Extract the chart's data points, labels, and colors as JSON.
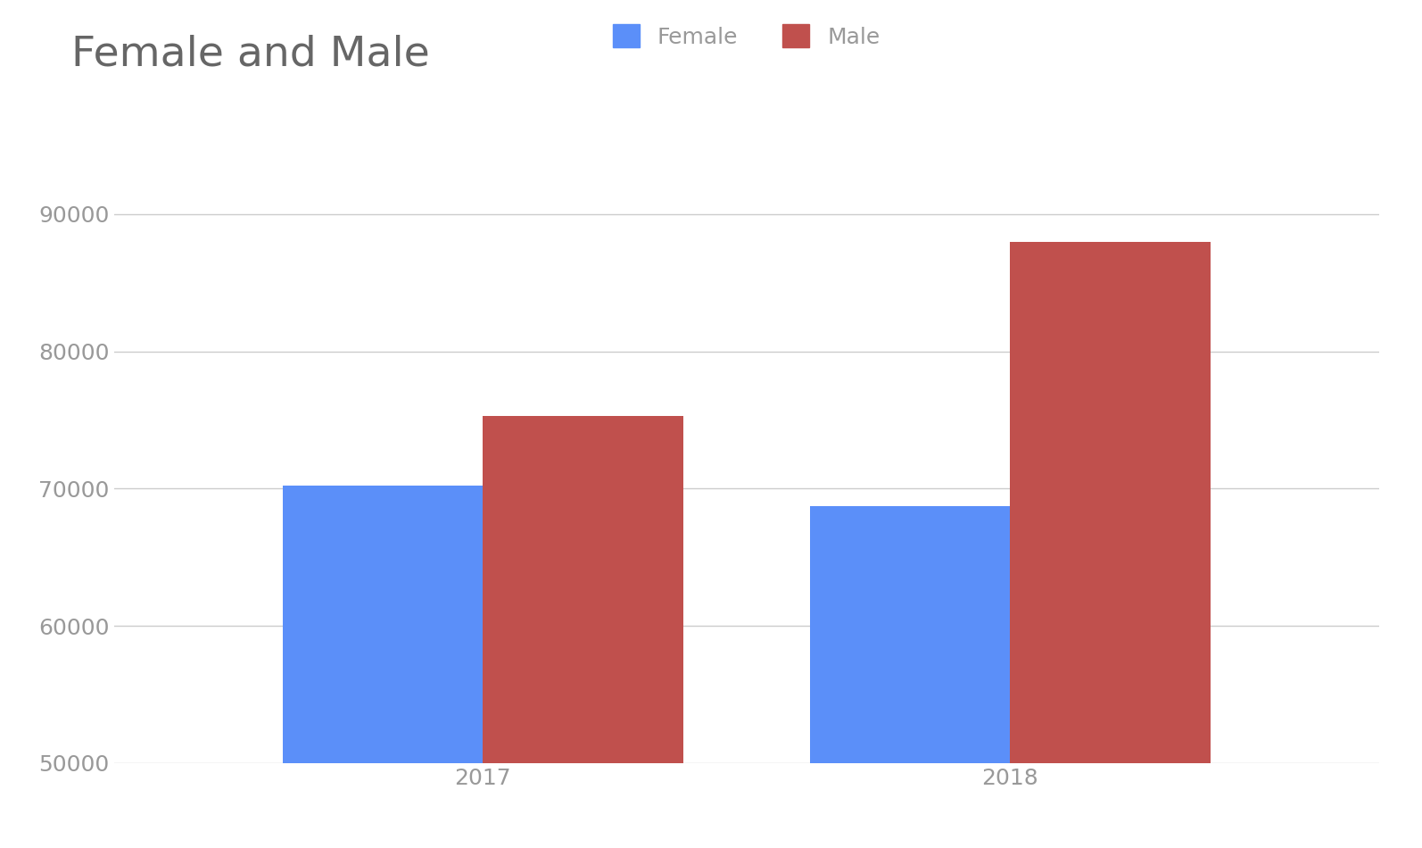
{
  "title": "Female and Male",
  "title_fontsize": 34,
  "title_color": "#666666",
  "categories": [
    "2017",
    "2018"
  ],
  "female_values": [
    70200,
    68700
  ],
  "male_values": [
    75300,
    88000
  ],
  "female_color": "#5B8FF9",
  "male_color": "#C0504D",
  "ylim": [
    50000,
    92000
  ],
  "yticks": [
    50000,
    60000,
    70000,
    80000,
    90000
  ],
  "legend_labels": [
    "Female",
    "Male"
  ],
  "bar_width": 0.38,
  "background_color": "#ffffff",
  "tick_color": "#999999",
  "tick_fontsize": 18,
  "grid_color": "#cccccc",
  "legend_fontsize": 18
}
